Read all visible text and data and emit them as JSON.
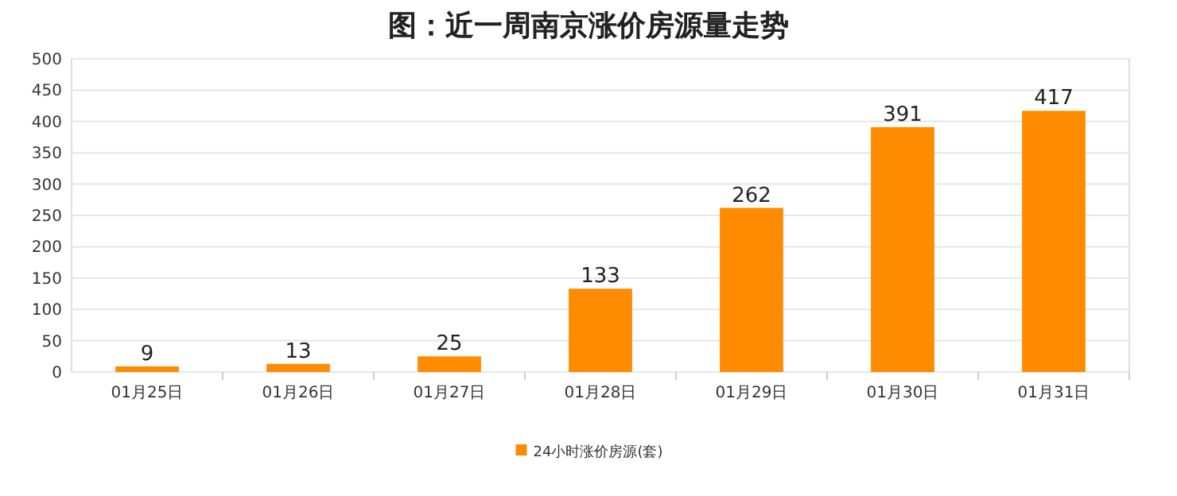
{
  "chart_data": {
    "type": "bar",
    "title": "图：近一周南京涨价房源量走势",
    "categories": [
      "01月25日",
      "01月26日",
      "01月27日",
      "01月28日",
      "01月29日",
      "01月30日",
      "01月31日"
    ],
    "series": [
      {
        "name": "24小时涨价房源(套)",
        "color": "#ff8c00",
        "values": [
          9,
          13,
          25,
          133,
          262,
          391,
          417
        ]
      }
    ],
    "ylim": [
      0,
      500
    ],
    "yticks": [
      0,
      50,
      100,
      150,
      200,
      250,
      300,
      350,
      400,
      450,
      500
    ],
    "grid": "y",
    "legend": "bottom",
    "data_labels": true
  }
}
